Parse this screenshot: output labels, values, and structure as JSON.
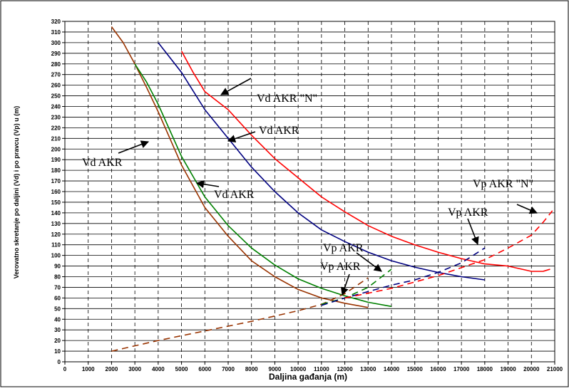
{
  "chart_data": {
    "type": "line",
    "xlabel": "Daljina gađanja  (m)",
    "ylabel": "Verovatno skretanje po daljini (Vd) i po pravcu (Vp) u (m)",
    "xlim": [
      0,
      21000
    ],
    "ylim": [
      0,
      320
    ],
    "x_ticks": [
      0,
      1000,
      2000,
      3000,
      4000,
      5000,
      6000,
      7000,
      8000,
      9000,
      10000,
      11000,
      12000,
      13000,
      14000,
      15000,
      16000,
      17000,
      18000,
      19000,
      20000,
      21000
    ],
    "y_ticks": [
      0,
      10,
      20,
      30,
      40,
      50,
      60,
      70,
      80,
      90,
      100,
      110,
      120,
      130,
      140,
      150,
      160,
      170,
      180,
      190,
      200,
      210,
      220,
      230,
      240,
      250,
      260,
      270,
      280,
      290,
      300,
      310,
      320
    ],
    "grid": {
      "horizontal": "solid",
      "vertical": "dashed"
    },
    "series": [
      {
        "color": "#993300",
        "dashed": false,
        "x": [
          2000,
          2500,
          3000,
          3500,
          4000,
          5000,
          6000,
          7000,
          8000,
          9000,
          10000,
          11000,
          12000,
          13000
        ],
        "y": [
          315,
          300,
          280,
          258,
          235,
          185,
          145,
          118,
          95,
          80,
          68,
          60,
          55,
          51
        ]
      },
      {
        "color": "#008000",
        "dashed": false,
        "x": [
          3000,
          3500,
          4000,
          5000,
          6000,
          7000,
          8000,
          9000,
          10000,
          11000,
          12000,
          13000,
          14000
        ],
        "y": [
          280,
          263,
          242,
          193,
          155,
          128,
          107,
          91,
          78,
          69,
          62,
          56,
          52
        ]
      },
      {
        "color": "#000080",
        "dashed": false,
        "x": [
          4000,
          5000,
          6000,
          7000,
          8000,
          9000,
          10000,
          11000,
          12000,
          13000,
          14000,
          15000,
          16000,
          17000,
          18000
        ],
        "y": [
          300,
          272,
          237,
          210,
          183,
          160,
          140,
          124,
          113,
          103,
          95,
          89,
          84,
          80,
          77
        ]
      },
      {
        "color": "#ff0000",
        "dashed": false,
        "x": [
          5000,
          5500,
          6000,
          7000,
          8000,
          9000,
          10000,
          11000,
          12000,
          13000,
          14000,
          15000,
          16000,
          17000,
          18000,
          19000,
          20000,
          20500,
          20800
        ],
        "y": [
          292,
          272,
          254,
          237,
          213,
          191,
          173,
          155,
          141,
          128,
          118,
          110,
          103,
          97,
          92,
          90,
          85,
          85,
          87
        ]
      },
      {
        "color": "#993300",
        "dashed": true,
        "x": [
          2000,
          4000,
          6000,
          8000,
          10000,
          11000,
          12000,
          13000
        ],
        "y": [
          10,
          20,
          29,
          38,
          48,
          54,
          64,
          79
        ]
      },
      {
        "color": "#008000",
        "dashed": true,
        "x": [
          11000,
          12000,
          13000,
          14000
        ],
        "y": [
          54,
          60,
          70,
          87
        ]
      },
      {
        "color": "#000080",
        "dashed": true,
        "x": [
          11000,
          12000,
          13000,
          14000,
          15000,
          16000,
          17000,
          18000
        ],
        "y": [
          53,
          60,
          66,
          72,
          77,
          84,
          93,
          107
        ]
      },
      {
        "color": "#ff0000",
        "dashed": true,
        "x": [
          12000,
          14000,
          16000,
          18000,
          19000,
          20000,
          20500,
          20900
        ],
        "y": [
          60,
          69,
          81,
          96,
          107,
          119,
          131,
          142
        ]
      }
    ],
    "annotations": [
      {
        "text": "Vd AKR \"N\""
      },
      {
        "text": "Vd AKR"
      },
      {
        "text": "Vd AKR"
      },
      {
        "text": "Vd AKR"
      },
      {
        "text": "Vp AKR \"N\""
      },
      {
        "text": "Vp AKR"
      },
      {
        "text": "Vp AKR"
      },
      {
        "text": "Vp AKR"
      }
    ]
  }
}
